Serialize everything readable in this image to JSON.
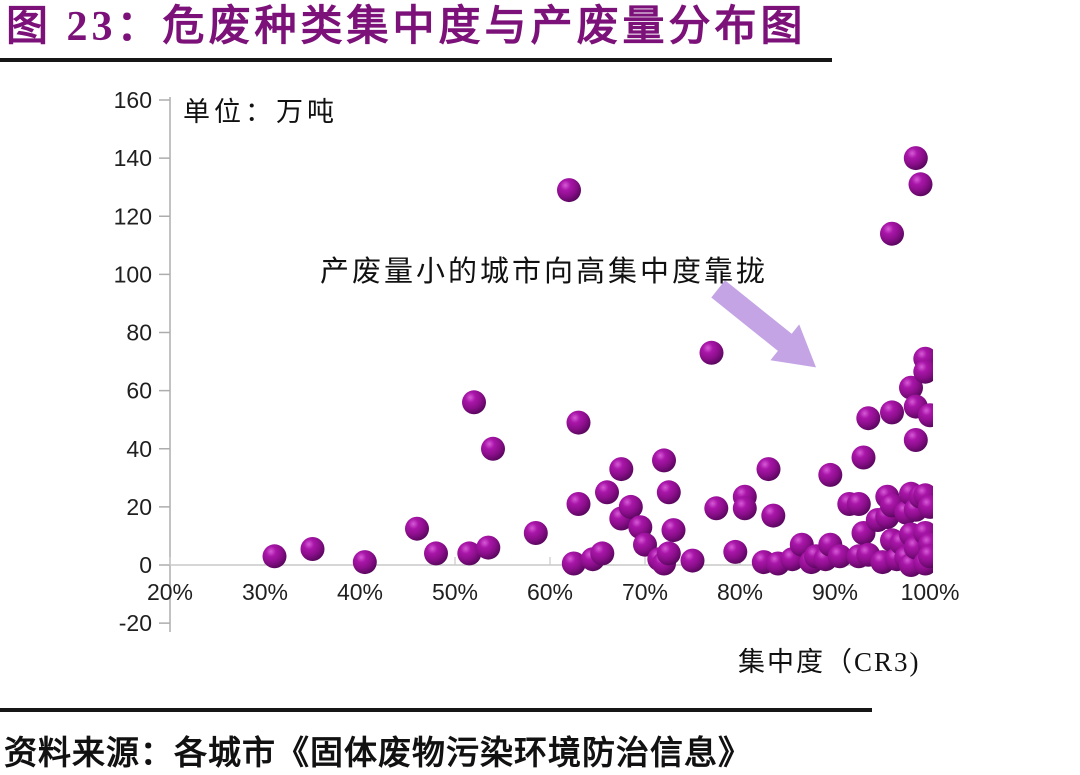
{
  "header": {
    "title": "图 23：危废种类集中度与产废量分布图",
    "accent_color": "#7B1179"
  },
  "chart": {
    "unit_label": "单位：万吨",
    "annotation": "产废量小的城市向高集中度靠拢",
    "x_axis_title": "集中度（CR3)",
    "point_color": "#8A0E8A",
    "arrow_color": "#C4A4E4",
    "axis_color": "#ADADAD"
  },
  "footer": {
    "source": "资料来源：各城市《固体废物污染环境防治信息》"
  },
  "chart_data": {
    "type": "scatter",
    "title": "危废种类集中度与产废量分布图",
    "xlabel": "集中度（CR3)",
    "ylabel": "单位：万吨",
    "xlim": [
      20,
      100
    ],
    "ylim": [
      -20,
      160
    ],
    "x_tick_labels": [
      "20%",
      "30%",
      "40%",
      "50%",
      "60%",
      "70%",
      "80%",
      "90%",
      "100%"
    ],
    "x_tick_values": [
      20,
      30,
      40,
      50,
      60,
      70,
      80,
      90,
      100
    ],
    "y_ticks": [
      160,
      140,
      120,
      100,
      80,
      60,
      40,
      20,
      0,
      -20
    ],
    "grid": false,
    "legend": "none",
    "annotation_text": "产废量小的城市向高集中度靠拢",
    "annotation_arrow": {
      "from": [
        77.7,
        95
      ],
      "to": [
        88,
        68
      ]
    },
    "points": [
      [
        31,
        3
      ],
      [
        35,
        5.5
      ],
      [
        40.5,
        1
      ],
      [
        46,
        12.5
      ],
      [
        48,
        4
      ],
      [
        51.5,
        4
      ],
      [
        52,
        56
      ],
      [
        53.5,
        6
      ],
      [
        54,
        40
      ],
      [
        58.5,
        11
      ],
      [
        62,
        129
      ],
      [
        62.5,
        0.5
      ],
      [
        63,
        49
      ],
      [
        63,
        21
      ],
      [
        64.5,
        2
      ],
      [
        65.5,
        4
      ],
      [
        66,
        25
      ],
      [
        67.5,
        33
      ],
      [
        67.5,
        16
      ],
      [
        68.5,
        20
      ],
      [
        69.5,
        13
      ],
      [
        70,
        7
      ],
      [
        71.5,
        2
      ],
      [
        72,
        36
      ],
      [
        72,
        0.5
      ],
      [
        72.5,
        25
      ],
      [
        72.5,
        4
      ],
      [
        73,
        12
      ],
      [
        75,
        1.5
      ],
      [
        77,
        73
      ],
      [
        77.5,
        19.5
      ],
      [
        79.5,
        4.5
      ],
      [
        80.5,
        23.5
      ],
      [
        80.5,
        19.5
      ],
      [
        82.5,
        1
      ],
      [
        83,
        33
      ],
      [
        83.5,
        17
      ],
      [
        84,
        0.5
      ],
      [
        85.5,
        2
      ],
      [
        86.5,
        7
      ],
      [
        87.5,
        1
      ],
      [
        88,
        3
      ],
      [
        89,
        2
      ],
      [
        89.5,
        31
      ],
      [
        89.5,
        7
      ],
      [
        90.5,
        3
      ],
      [
        91.5,
        21
      ],
      [
        92.5,
        21
      ],
      [
        92.5,
        3
      ],
      [
        93,
        37
      ],
      [
        93,
        11
      ],
      [
        93.5,
        50.5
      ],
      [
        93.5,
        3.5
      ],
      [
        94.5,
        15.5
      ],
      [
        95,
        1
      ],
      [
        95.5,
        23.5
      ],
      [
        95.5,
        16.5
      ],
      [
        96,
        114
      ],
      [
        96,
        52.5
      ],
      [
        96,
        20.5
      ],
      [
        96,
        8.5
      ],
      [
        96.5,
        2
      ],
      [
        97,
        7.5
      ],
      [
        97.5,
        18
      ],
      [
        97.5,
        2.5
      ],
      [
        98,
        61
      ],
      [
        98,
        24.5
      ],
      [
        98,
        10.5
      ],
      [
        98,
        0
      ],
      [
        98.5,
        140
      ],
      [
        98.5,
        54.5
      ],
      [
        98.5,
        43
      ],
      [
        98.5,
        19
      ],
      [
        98.5,
        6
      ],
      [
        99,
        131
      ],
      [
        99,
        23.5
      ],
      [
        99.5,
        71
      ],
      [
        99.5,
        66.5
      ],
      [
        99.5,
        24
      ],
      [
        99.5,
        11
      ],
      [
        99.5,
        0.5
      ],
      [
        100,
        51.5
      ],
      [
        100,
        20
      ],
      [
        100,
        7
      ],
      [
        100,
        3
      ]
    ]
  }
}
